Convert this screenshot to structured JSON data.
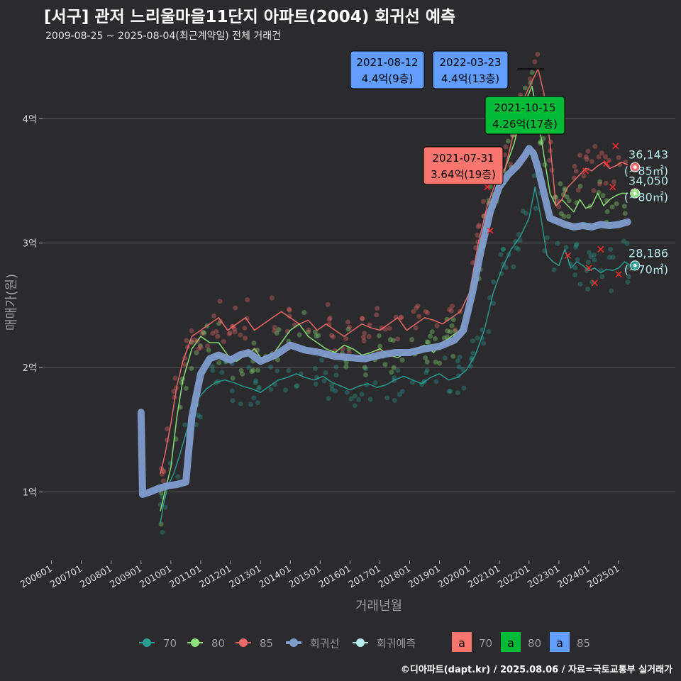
{
  "title": "[서구] 관저 느리울마을11단지 아파트(2004) 회귀선 예측",
  "subtitle": "2009-08-25 ~ 2025-08-04(최근계약일) 전체 거래건",
  "credit": "©디아파트(dapt.kr) / 2025.08.06 / 자료=국토교통부 실거래가",
  "colors": {
    "background": "#2b2b2d",
    "grid": "#5a5a5a",
    "s70": "#2a9d93",
    "s80": "#8fe37a",
    "s85": "#f06a6a",
    "regression": "#7f9ccc",
    "forecast": "#b7ecec",
    "box70": "#f8766d",
    "box80": "#00ba38",
    "box85": "#619cff"
  },
  "chart_data": {
    "type": "line",
    "title": "[서구] 관저 느리울마을11단지 아파트(2004) 회귀선 예측",
    "xlabel": "거래년월",
    "ylabel": "매매가(원)",
    "xlim": [
      2005.7,
      2026.9
    ],
    "ylim": [
      0.45,
      4.6
    ],
    "y_unit": "억",
    "yticks": [
      1,
      2,
      3,
      4
    ],
    "ytick_labels": [
      "1억",
      "2억",
      "3억",
      "4억"
    ],
    "xticks": [
      2006.0,
      2007.0,
      2008.0,
      2009.0,
      2010.0,
      2011.0,
      2012.0,
      2013.0,
      2014.0,
      2015.0,
      2016.0,
      2017.0,
      2018.0,
      2019.0,
      2020.0,
      2021.0,
      2022.0,
      2023.0,
      2024.0,
      2025.0
    ],
    "xtick_labels": [
      "200601",
      "200701",
      "200801",
      "200901",
      "201001",
      "201101",
      "201201",
      "201301",
      "201401",
      "201501",
      "201601",
      "201701",
      "201801",
      "201901",
      "202001",
      "202101",
      "202201",
      "202301",
      "202401",
      "202501"
    ],
    "series": [
      {
        "name": "70",
        "color": "#2a9d93",
        "x": [
          2009.65,
          2009.75,
          2009.9,
          2010.1,
          2010.3,
          2010.6,
          2010.9,
          2011.2,
          2011.5,
          2011.8,
          2012.1,
          2012.4,
          2012.7,
          2013.0,
          2013.3,
          2013.6,
          2013.9,
          2014.2,
          2014.5,
          2014.8,
          2015.1,
          2015.4,
          2015.7,
          2016.0,
          2016.3,
          2016.6,
          2016.9,
          2017.2,
          2017.5,
          2017.8,
          2018.1,
          2018.4,
          2018.7,
          2019.0,
          2019.3,
          2019.6,
          2019.9,
          2020.2,
          2020.5,
          2020.8,
          2021.1,
          2021.4,
          2021.7,
          2022.0,
          2022.2,
          2022.4,
          2022.6,
          2022.8,
          2023.0,
          2023.2,
          2023.4,
          2023.6,
          2023.8,
          2024.0,
          2024.2,
          2024.4,
          2024.6,
          2024.8,
          2025.0,
          2025.2,
          2025.4
        ],
        "y": [
          0.75,
          0.9,
          1.05,
          1.15,
          1.3,
          1.55,
          1.75,
          1.83,
          1.88,
          1.9,
          1.88,
          1.85,
          1.83,
          1.8,
          1.85,
          1.9,
          1.92,
          1.95,
          1.92,
          1.9,
          1.93,
          1.88,
          1.85,
          1.82,
          1.85,
          1.87,
          1.84,
          1.86,
          1.9,
          1.93,
          1.9,
          1.87,
          1.92,
          1.95,
          1.9,
          1.92,
          1.98,
          2.1,
          2.3,
          2.6,
          2.8,
          2.95,
          3.05,
          3.2,
          3.45,
          3.2,
          2.9,
          2.85,
          2.82,
          2.95,
          2.8,
          2.85,
          2.82,
          2.78,
          2.8,
          2.76,
          2.79,
          2.78,
          2.8,
          2.85,
          2.82
        ]
      },
      {
        "name": "80",
        "color": "#8fe37a",
        "x": [
          2009.65,
          2009.8,
          2010.0,
          2010.2,
          2010.4,
          2010.7,
          2011.0,
          2011.3,
          2011.6,
          2011.9,
          2012.2,
          2012.5,
          2012.8,
          2013.1,
          2013.4,
          2013.7,
          2014.0,
          2014.3,
          2014.6,
          2014.9,
          2015.2,
          2015.5,
          2015.8,
          2016.1,
          2016.4,
          2016.7,
          2017.0,
          2017.3,
          2017.6,
          2017.9,
          2018.2,
          2018.5,
          2018.8,
          2019.1,
          2019.4,
          2019.7,
          2020.0,
          2020.3,
          2020.6,
          2020.9,
          2021.2,
          2021.5,
          2021.7,
          2021.9,
          2022.1,
          2022.3,
          2022.5,
          2022.7,
          2022.9,
          2023.1,
          2023.3,
          2023.5,
          2023.7,
          2023.9,
          2024.1,
          2024.3,
          2024.5,
          2024.7,
          2024.9,
          2025.1,
          2025.3
        ],
        "y": [
          0.85,
          1.0,
          1.2,
          1.6,
          1.9,
          2.15,
          2.25,
          2.2,
          2.2,
          2.1,
          2.05,
          2.1,
          2.15,
          2.05,
          2.1,
          2.2,
          2.3,
          2.35,
          2.25,
          2.2,
          2.15,
          2.12,
          2.18,
          2.15,
          2.1,
          2.12,
          2.15,
          2.1,
          2.08,
          2.12,
          2.15,
          2.18,
          2.12,
          2.2,
          2.25,
          2.3,
          2.5,
          2.85,
          3.2,
          3.45,
          3.6,
          3.8,
          4.0,
          4.15,
          4.26,
          4.0,
          3.7,
          3.4,
          3.3,
          3.35,
          3.3,
          3.25,
          3.35,
          3.28,
          3.3,
          3.4,
          3.3,
          3.35,
          3.38,
          3.4,
          3.4
        ]
      },
      {
        "name": "85",
        "color": "#f06a6a",
        "x": [
          2009.65,
          2009.8,
          2010.0,
          2010.2,
          2010.4,
          2010.7,
          2011.0,
          2011.3,
          2011.6,
          2011.9,
          2012.2,
          2012.5,
          2012.8,
          2013.1,
          2013.4,
          2013.7,
          2014.0,
          2014.3,
          2014.6,
          2014.9,
          2015.2,
          2015.5,
          2015.8,
          2016.1,
          2016.4,
          2016.7,
          2017.0,
          2017.3,
          2017.6,
          2017.9,
          2018.2,
          2018.5,
          2018.8,
          2019.1,
          2019.4,
          2019.7,
          2020.0,
          2020.3,
          2020.6,
          2020.9,
          2021.2,
          2021.5,
          2021.7,
          2021.9,
          2022.1,
          2022.3,
          2022.5,
          2022.7,
          2022.9,
          2023.1,
          2023.3,
          2023.5,
          2023.7,
          2023.9,
          2024.1,
          2024.3,
          2024.5,
          2024.7,
          2024.9,
          2025.1,
          2025.3
        ],
        "y": [
          1.15,
          1.3,
          1.55,
          1.85,
          2.05,
          2.25,
          2.3,
          2.35,
          2.4,
          2.3,
          2.35,
          2.4,
          2.3,
          2.35,
          2.4,
          2.45,
          2.4,
          2.35,
          2.38,
          2.3,
          2.35,
          2.3,
          2.25,
          2.3,
          2.35,
          2.32,
          2.3,
          2.35,
          2.4,
          2.3,
          2.35,
          2.4,
          2.38,
          2.35,
          2.4,
          2.45,
          2.6,
          3.0,
          3.3,
          3.5,
          3.6,
          3.9,
          4.1,
          4.2,
          4.3,
          4.4,
          4.2,
          3.8,
          3.3,
          3.35,
          3.45,
          3.5,
          3.55,
          3.6,
          3.58,
          3.62,
          3.65,
          3.6,
          3.62,
          3.65,
          3.63
        ]
      },
      {
        "name": "회귀선",
        "color": "#7f9ccc",
        "x": [
          2009.0,
          2009.05,
          2009.3,
          2009.6,
          2009.9,
          2010.2,
          2010.5,
          2010.7,
          2011.0,
          2011.3,
          2011.6,
          2012.0,
          2012.3,
          2012.6,
          2013.0,
          2013.5,
          2014.0,
          2014.5,
          2015.0,
          2015.5,
          2016.0,
          2016.5,
          2017.0,
          2017.5,
          2018.0,
          2018.5,
          2019.0,
          2019.5,
          2019.8,
          2020.1,
          2020.4,
          2020.7,
          2021.0,
          2021.3,
          2021.6,
          2021.85,
          2022.0,
          2022.15,
          2022.3,
          2022.5,
          2022.7,
          2022.9,
          2023.2,
          2023.5,
          2023.8,
          2024.1,
          2024.4,
          2024.7,
          2025.0,
          2025.3
        ],
        "y": [
          1.64,
          0.98,
          1.0,
          1.03,
          1.05,
          1.06,
          1.08,
          1.6,
          1.95,
          2.07,
          2.1,
          2.06,
          2.1,
          2.12,
          2.05,
          2.1,
          2.18,
          2.14,
          2.12,
          2.09,
          2.08,
          2.07,
          2.1,
          2.12,
          2.12,
          2.15,
          2.17,
          2.22,
          2.3,
          2.6,
          2.95,
          3.25,
          3.45,
          3.55,
          3.62,
          3.7,
          3.76,
          3.72,
          3.6,
          3.4,
          3.2,
          3.18,
          3.15,
          3.13,
          3.14,
          3.13,
          3.15,
          3.14,
          3.15,
          3.17
        ]
      }
    ],
    "forecast": [
      {
        "size": "85",
        "value": "36,143",
        "area": "(~85㎡)",
        "x": 2025.55,
        "y": 3.61,
        "color": "#f06a6a"
      },
      {
        "size": "80",
        "value": "34,050",
        "area": "(~80㎡)",
        "x": 2025.55,
        "y": 3.4,
        "color": "#8fe37a"
      },
      {
        "size": "70",
        "value": "28,186",
        "area": "(~70㎡)",
        "x": 2025.55,
        "y": 2.82,
        "color": "#2a9d93"
      }
    ],
    "annotations": [
      {
        "date": "2021-08-12",
        "price": "4.4억(9층)",
        "color": "#619cff",
        "series": "85",
        "x": 2021.61,
        "y": 4.4,
        "anchor": "left"
      },
      {
        "date": "2022-03-23",
        "price": "4.4억(13층)",
        "color": "#619cff",
        "series": "85",
        "x": 2022.22,
        "y": 4.4,
        "anchor": "right"
      },
      {
        "date": "2021-10-15",
        "price": "4.26억(17층)",
        "color": "#00ba38",
        "series": "80",
        "x": 2021.79,
        "y": 4.26,
        "anchor": "center"
      },
      {
        "date": "2021-07-31",
        "price": "3.64억(19층)",
        "color": "#f8766d",
        "series": "70",
        "x": 2021.58,
        "y": 3.64,
        "anchor": "center"
      }
    ],
    "legend": {
      "position": "bottom",
      "items": [
        {
          "label": "70",
          "kind": "series",
          "color": "#2a9d93"
        },
        {
          "label": "80",
          "kind": "series",
          "color": "#8fe37a"
        },
        {
          "label": "85",
          "kind": "series",
          "color": "#f06a6a"
        },
        {
          "label": "회귀선",
          "kind": "series",
          "color": "#7f9ccc"
        },
        {
          "label": "회귀예측",
          "kind": "series",
          "color": "#b7ecec"
        }
      ],
      "box_items": [
        {
          "label": "70",
          "glyph": "a",
          "color": "#f8766d"
        },
        {
          "label": "80",
          "glyph": "a",
          "color": "#00ba38"
        },
        {
          "label": "85",
          "glyph": "a",
          "color": "#619cff"
        }
      ]
    }
  }
}
